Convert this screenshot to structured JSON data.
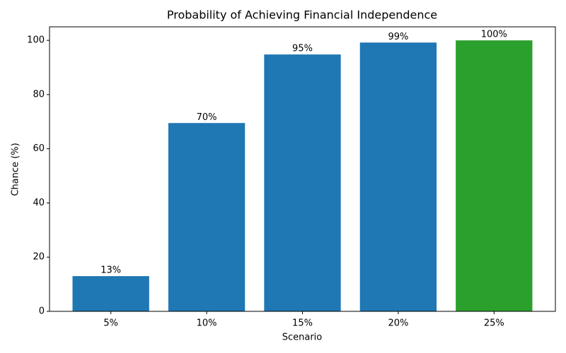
{
  "chart_data": {
    "type": "bar",
    "title": "Probability of Achieving Financial Independence",
    "x_label": "Scenario",
    "y_label": "Chance (%)",
    "categories": [
      "5%",
      "10%",
      "15%",
      "20%",
      "25%"
    ],
    "values": [
      13.0,
      69.5,
      94.8,
      99.2,
      100
    ],
    "value_labels": [
      "13%",
      "70%",
      "95%",
      "99%",
      "100%"
    ],
    "colors": [
      "#1f77b4",
      "#1f77b4",
      "#1f77b4",
      "#1f77b4",
      "#2ca02c"
    ],
    "ylim": [
      0,
      105
    ],
    "yticks": [
      0,
      20,
      40,
      60,
      80,
      100
    ],
    "grid": false
  }
}
